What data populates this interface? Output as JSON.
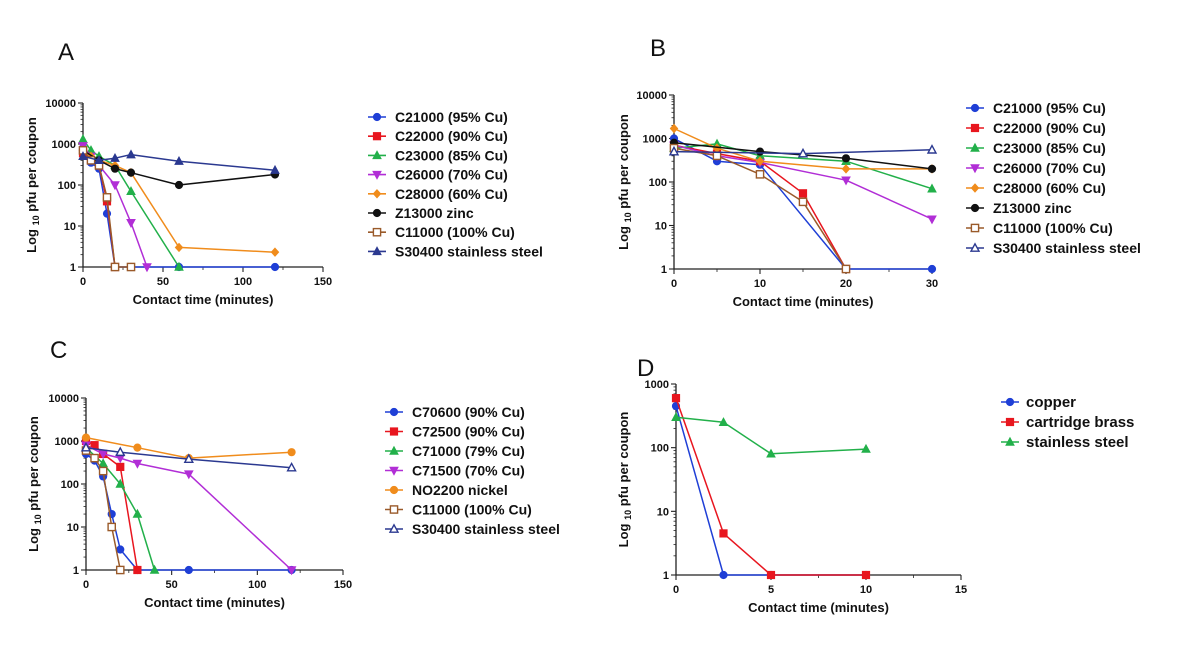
{
  "colors": {
    "blue": "#1f3fd6",
    "red": "#e8161f",
    "green": "#22b04a",
    "purple": "#b12ed6",
    "orange": "#f08c1c",
    "black": "#111111",
    "brown": "#9a5a2a",
    "navy": "#2b3990",
    "axis": "#222222"
  },
  "chart_data": [
    {
      "panel": "A",
      "type": "line",
      "ylabel_main": "Log",
      "ylabel_sub": "10",
      "ylabel_rest": "pfu per coupon",
      "xlabel": "Contact time (minutes)",
      "xlim": [
        0,
        150
      ],
      "xticks": [
        0,
        50,
        100,
        150
      ],
      "xtick_labels": [
        "0",
        "50",
        "100",
        "150"
      ],
      "ylim": [
        1,
        10000
      ],
      "yscale": "log",
      "yticks": [
        1,
        10,
        100,
        1000,
        10000
      ],
      "ytick_labels": [
        "1",
        "10",
        "100",
        "1000",
        "10000"
      ],
      "legend_position": "right",
      "series": [
        {
          "name": "C21000 (95% Cu)",
          "color": "blue",
          "marker": "circle",
          "filled": true,
          "x": [
            0,
            5,
            10,
            15,
            20,
            30,
            60,
            120
          ],
          "y": [
            800,
            350,
            250,
            20,
            1,
            1,
            1,
            1
          ]
        },
        {
          "name": "C22000 (90% Cu)",
          "color": "red",
          "marker": "square",
          "filled": true,
          "x": [
            0,
            5,
            10,
            15,
            20
          ],
          "y": [
            600,
            400,
            300,
            40,
            1
          ]
        },
        {
          "name": "C23000 (85% Cu)",
          "color": "green",
          "marker": "triangle-up",
          "filled": true,
          "x": [
            0,
            5,
            10,
            20,
            30,
            60
          ],
          "y": [
            1300,
            700,
            500,
            300,
            70,
            1
          ]
        },
        {
          "name": "C26000 (70% Cu)",
          "color": "purple",
          "marker": "triangle-down",
          "filled": true,
          "x": [
            0,
            5,
            10,
            20,
            30,
            40
          ],
          "y": [
            900,
            500,
            300,
            100,
            12,
            1
          ]
        },
        {
          "name": "C28000 (60% Cu)",
          "color": "orange",
          "marker": "diamond",
          "filled": true,
          "x": [
            0,
            5,
            10,
            20,
            30,
            60,
            120
          ],
          "y": [
            700,
            500,
            400,
            300,
            200,
            3,
            2.3
          ]
        },
        {
          "name": "Z13000 zinc",
          "color": "black",
          "marker": "circle",
          "filled": true,
          "x": [
            0,
            10,
            20,
            30,
            60,
            120
          ],
          "y": [
            700,
            400,
            250,
            200,
            100,
            180
          ]
        },
        {
          "name": "C11000 (100% Cu)",
          "color": "brown",
          "marker": "square",
          "filled": false,
          "x": [
            0,
            5,
            10,
            15,
            20,
            30
          ],
          "y": [
            700,
            400,
            300,
            50,
            1,
            1
          ]
        },
        {
          "name": "S30400 stainless steel",
          "color": "navy",
          "marker": "triangle-up",
          "filled": true,
          "x": [
            0,
            10,
            20,
            30,
            60,
            120
          ],
          "y": [
            500,
            400,
            450,
            550,
            380,
            230
          ]
        }
      ]
    },
    {
      "panel": "B",
      "type": "line",
      "ylabel_main": "Log",
      "ylabel_sub": "10",
      "ylabel_rest": "pfu per coupon",
      "xlabel": "Contact time (minutes)",
      "xlim": [
        0,
        30
      ],
      "xticks": [
        0,
        10,
        20,
        30
      ],
      "xtick_labels": [
        "0",
        "10",
        "20",
        "30"
      ],
      "ylim": [
        1,
        10000
      ],
      "yscale": "log",
      "yticks": [
        1,
        10,
        100,
        1000,
        10000
      ],
      "ytick_labels": [
        "1",
        "10",
        "100",
        "1000",
        "10000"
      ],
      "legend_position": "right",
      "series": [
        {
          "name": "C21000 (95% Cu)",
          "color": "blue",
          "marker": "circle",
          "filled": true,
          "x": [
            0,
            5,
            10,
            20,
            30
          ],
          "y": [
            1000,
            300,
            250,
            1,
            1
          ]
        },
        {
          "name": "C22000 (90% Cu)",
          "color": "red",
          "marker": "square",
          "filled": true,
          "x": [
            0,
            5,
            10,
            15,
            20
          ],
          "y": [
            700,
            450,
            300,
            55,
            1
          ]
        },
        {
          "name": "C23000 (85% Cu)",
          "color": "green",
          "marker": "triangle-up",
          "filled": true,
          "x": [
            0,
            5,
            10,
            20,
            30
          ],
          "y": [
            600,
            750,
            400,
            300,
            70
          ]
        },
        {
          "name": "C26000 (70% Cu)",
          "color": "purple",
          "marker": "triangle-down",
          "filled": true,
          "x": [
            0,
            5,
            10,
            20,
            30
          ],
          "y": [
            700,
            400,
            280,
            110,
            14
          ]
        },
        {
          "name": "C28000 (60% Cu)",
          "color": "orange",
          "marker": "diamond",
          "filled": true,
          "x": [
            0,
            5,
            10,
            20,
            30
          ],
          "y": [
            1700,
            600,
            300,
            200,
            200
          ]
        },
        {
          "name": "Z13000 zinc",
          "color": "black",
          "marker": "circle",
          "filled": true,
          "x": [
            0,
            10,
            20,
            30
          ],
          "y": [
            800,
            500,
            350,
            200
          ]
        },
        {
          "name": "C11000 (100% Cu)",
          "color": "brown",
          "marker": "square",
          "filled": false,
          "x": [
            0,
            5,
            10,
            15,
            20
          ],
          "y": [
            600,
            400,
            150,
            35,
            1
          ]
        },
        {
          "name": "S30400 stainless steel",
          "color": "navy",
          "marker": "triangle-up",
          "filled": false,
          "x": [
            0,
            15,
            30
          ],
          "y": [
            500,
            450,
            550
          ]
        }
      ]
    },
    {
      "panel": "C",
      "type": "line",
      "ylabel_main": "Log",
      "ylabel_sub": "10",
      "ylabel_rest": "pfu per coupon",
      "xlabel": "Contact time (minutes)",
      "xlim": [
        0,
        150
      ],
      "xticks": [
        0,
        50,
        100,
        150
      ],
      "xtick_labels": [
        "0",
        "50",
        "100",
        "150"
      ],
      "ylim": [
        1,
        10000
      ],
      "yscale": "log",
      "yticks": [
        1,
        10,
        100,
        1000,
        10000
      ],
      "ytick_labels": [
        "1",
        "10",
        "100",
        "1000",
        "10000"
      ],
      "legend_position": "right",
      "series": [
        {
          "name": "C70600 (90% Cu)",
          "color": "blue",
          "marker": "circle",
          "filled": true,
          "x": [
            0,
            5,
            10,
            15,
            20,
            30,
            60,
            120
          ],
          "y": [
            500,
            350,
            150,
            20,
            3,
            1,
            1,
            1
          ]
        },
        {
          "name": "C72500 (90% Cu)",
          "color": "red",
          "marker": "square",
          "filled": true,
          "x": [
            0,
            5,
            10,
            20,
            30
          ],
          "y": [
            1000,
            800,
            500,
            250,
            1
          ]
        },
        {
          "name": "C71000 (79% Cu)",
          "color": "green",
          "marker": "triangle-up",
          "filled": true,
          "x": [
            0,
            10,
            20,
            30,
            40
          ],
          "y": [
            700,
            300,
            100,
            20,
            1
          ]
        },
        {
          "name": "C71500 (70% Cu)",
          "color": "purple",
          "marker": "triangle-down",
          "filled": true,
          "x": [
            0,
            10,
            20,
            30,
            60,
            120
          ],
          "y": [
            800,
            500,
            400,
            300,
            170,
            1
          ]
        },
        {
          "name": "NO2200 nickel",
          "color": "orange",
          "marker": "circle",
          "filled": true,
          "x": [
            0,
            30,
            60,
            120
          ],
          "y": [
            1200,
            700,
            400,
            550
          ]
        },
        {
          "name": "C11000 (100% Cu)",
          "color": "brown",
          "marker": "square",
          "filled": false,
          "x": [
            0,
            5,
            10,
            15,
            20
          ],
          "y": [
            600,
            400,
            200,
            10,
            1
          ]
        },
        {
          "name": "S30400 stainless steel",
          "color": "navy",
          "marker": "triangle-up",
          "filled": false,
          "x": [
            0,
            20,
            60,
            120
          ],
          "y": [
            700,
            550,
            380,
            240
          ]
        }
      ]
    },
    {
      "panel": "D",
      "type": "line",
      "ylabel_main": "Log",
      "ylabel_sub": "10",
      "ylabel_rest": "pfu per coupon",
      "xlabel": "Contact time (minutes)",
      "xlim": [
        0,
        15
      ],
      "xticks": [
        0,
        5,
        10,
        15
      ],
      "xtick_labels": [
        "0",
        "5",
        "10",
        "15"
      ],
      "ylim": [
        1,
        1000
      ],
      "yscale": "log",
      "yticks": [
        1,
        10,
        100,
        1000
      ],
      "ytick_labels": [
        "1",
        "10",
        "100",
        "1000"
      ],
      "legend_position": "right",
      "series": [
        {
          "name": "copper",
          "color": "blue",
          "marker": "circle",
          "filled": true,
          "x": [
            0,
            2.5,
            5,
            10
          ],
          "y": [
            450,
            1,
            1,
            1
          ]
        },
        {
          "name": "cartridge brass",
          "color": "red",
          "marker": "square",
          "filled": true,
          "x": [
            0,
            2.5,
            5,
            10
          ],
          "y": [
            600,
            4.5,
            1,
            1
          ]
        },
        {
          "name": "stainless steel",
          "color": "green",
          "marker": "triangle-up",
          "filled": true,
          "x": [
            0,
            2.5,
            5,
            10
          ],
          "y": [
            300,
            250,
            80,
            95
          ]
        }
      ]
    }
  ]
}
